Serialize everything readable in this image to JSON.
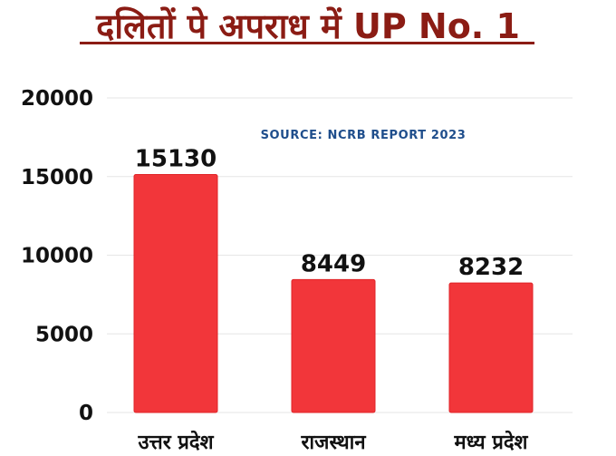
{
  "chart_data": {
    "type": "bar",
    "title": "दलितों पे अपराध में UP No. 1",
    "subtitle": "SOURCE: NCRB REPORT 2023",
    "categories": [
      "उत्तर प्रदेश",
      "राजस्थान",
      "मध्य प्रदेश"
    ],
    "values": [
      15130,
      8449,
      8232
    ],
    "data_labels": [
      "15130",
      "8449",
      "8232"
    ],
    "yticks": [
      "0",
      "5000",
      "10000",
      "15000",
      "20000"
    ],
    "ylim": [
      0,
      20000
    ],
    "grid": true,
    "legend": "none",
    "xlabel": "",
    "ylabel": ""
  },
  "colors": {
    "bar": "#f2363a",
    "bar_edge": "#e02428",
    "title": "#8b1c14",
    "source": "#1f4e8c",
    "grid": "#e6e6e6"
  }
}
